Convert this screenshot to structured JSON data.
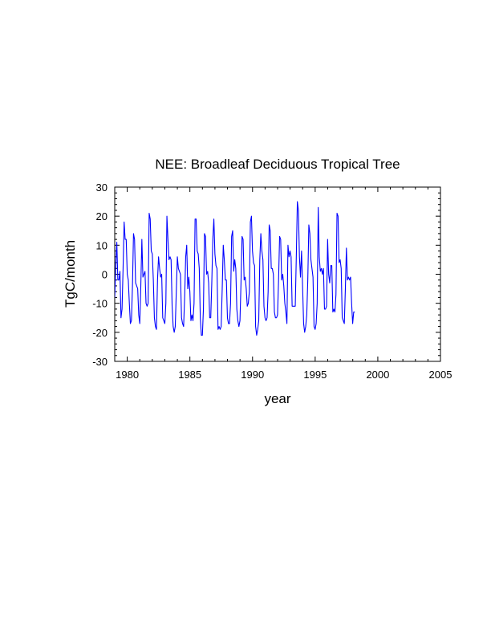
{
  "chart_data": {
    "type": "line",
    "title": "NEE: Broadleaf Deciduous Tropical Tree",
    "xlabel": "year",
    "ylabel": "TgC/month",
    "xlim": [
      1979,
      2005
    ],
    "ylim": [
      -30,
      30
    ],
    "x_ticks": [
      1980,
      1985,
      1990,
      1995,
      2000,
      2005
    ],
    "x_tick_labels": [
      "1980",
      "1985",
      "1990",
      "1995",
      "2000",
      "2005"
    ],
    "y_ticks": [
      -30,
      -20,
      -10,
      0,
      10,
      20,
      30
    ],
    "y_tick_labels": [
      "-30",
      "-20",
      "-10",
      "0",
      "10",
      "20",
      "30"
    ],
    "grid": false,
    "line_color": "#0000ff",
    "series": [
      {
        "name": "NEE",
        "start_year": 1979.0,
        "step_years": 0.0833,
        "values": [
          -8,
          3,
          11,
          -2,
          -2,
          1,
          -15,
          -12,
          2,
          18,
          12,
          12,
          0,
          -2,
          -10,
          -17,
          -16,
          -4,
          14,
          12,
          -3,
          -4,
          -5,
          -14,
          -17,
          -4,
          12,
          -1,
          0,
          1,
          -10,
          -11,
          -10,
          21,
          19,
          8,
          7,
          -2,
          -15,
          -18,
          -19,
          -2,
          6,
          2,
          -1,
          0,
          -15,
          -16,
          -17,
          -10,
          20,
          12,
          5,
          6,
          5,
          -11,
          -18,
          -20,
          -18,
          -6,
          6,
          2,
          1,
          0,
          -15,
          -17,
          -18,
          -8,
          6,
          10,
          -5,
          -1,
          -6,
          -16,
          -14,
          -16,
          -10,
          19,
          19,
          8,
          7,
          2,
          -15,
          -21,
          -21,
          -12,
          14,
          13,
          0,
          1,
          -3,
          -15,
          -15,
          -3,
          12,
          19,
          7,
          3,
          2,
          -19,
          -18,
          -19,
          -18,
          -5,
          10,
          5,
          -2,
          -2,
          -15,
          -17,
          -17,
          -10,
          13,
          15,
          1,
          5,
          2,
          -12,
          -16,
          -18,
          -16,
          -3,
          13,
          12,
          -2,
          -1,
          -5,
          -11,
          -10,
          -6,
          18,
          20,
          8,
          4,
          3,
          -18,
          -21,
          -19,
          -16,
          5,
          14,
          8,
          5,
          -11,
          -15,
          -16,
          -15,
          -6,
          17,
          15,
          2,
          2,
          0,
          -13,
          -15,
          -15,
          -14,
          -2,
          13,
          12,
          -2,
          0,
          -4,
          -10,
          -13,
          -17,
          10,
          6,
          8,
          6,
          -11,
          -11,
          -11,
          -11,
          6,
          25,
          22,
          6,
          -1,
          8,
          -4,
          -17,
          -20,
          -18,
          -14,
          -2,
          17,
          14,
          5,
          2,
          -1,
          -18,
          -19,
          -17,
          -10,
          23,
          6,
          1,
          2,
          0,
          2,
          -12,
          -12,
          -11,
          12,
          0,
          -3,
          3,
          3,
          -13,
          -12,
          -13,
          -7,
          21,
          20,
          4,
          5,
          2,
          -15,
          -16,
          -17,
          -5,
          9,
          -2,
          -1,
          -2,
          -1,
          -10,
          -17,
          -13,
          -13
        ]
      }
    ]
  }
}
